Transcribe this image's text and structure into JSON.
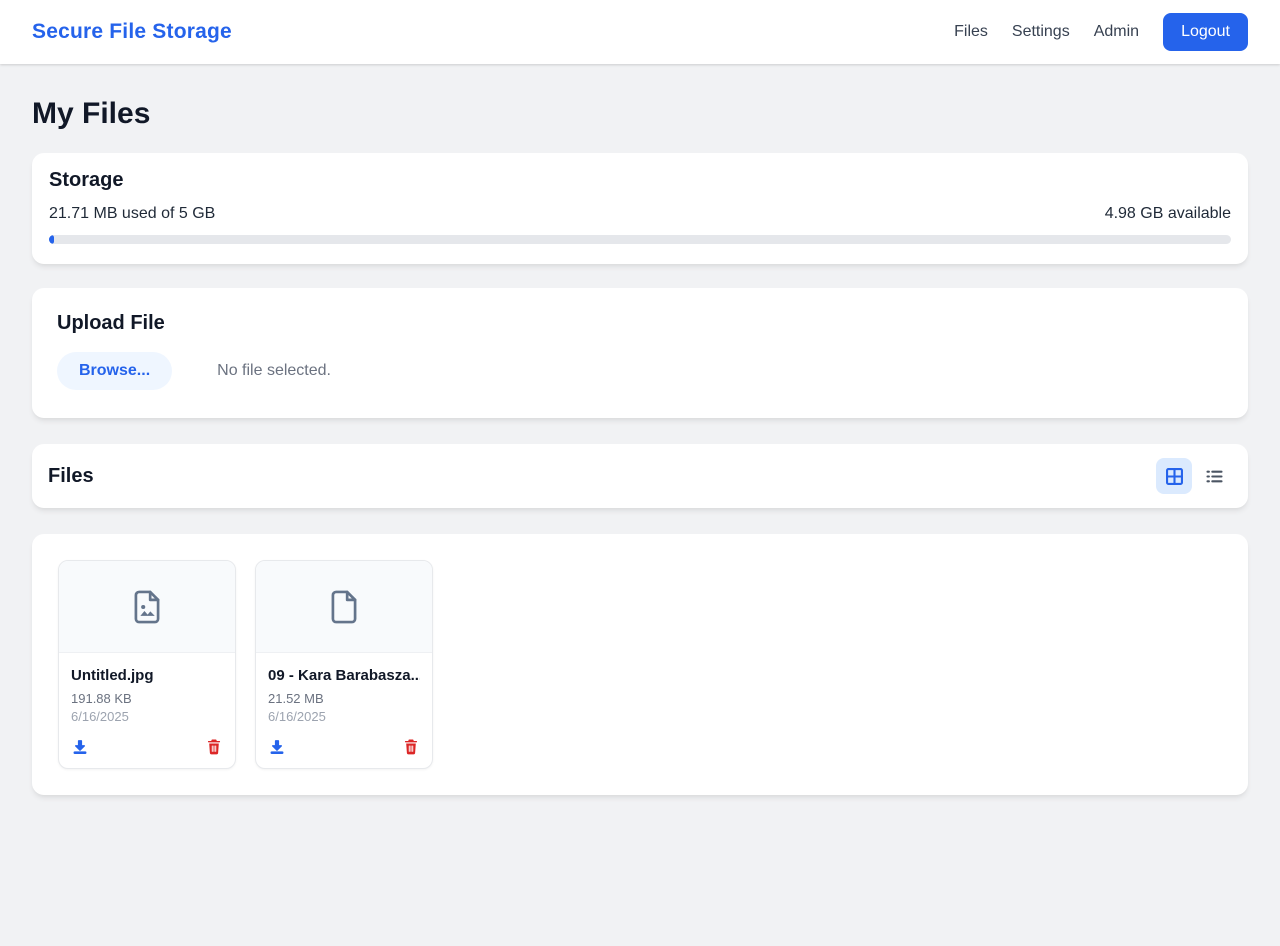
{
  "header": {
    "brand": "Secure File Storage",
    "nav": [
      {
        "label": "Files"
      },
      {
        "label": "Settings"
      },
      {
        "label": "Admin"
      }
    ],
    "logout_label": "Logout"
  },
  "page": {
    "title": "My Files"
  },
  "storage": {
    "title": "Storage",
    "used_text": "21.71 MB used of 5 GB",
    "available_text": "4.98 GB available",
    "progress_percent": 0.42
  },
  "upload": {
    "title": "Upload File",
    "browse_label": "Browse...",
    "status_text": "No file selected."
  },
  "files_section": {
    "title": "Files",
    "active_view": "grid",
    "view_modes": [
      "grid",
      "list"
    ]
  },
  "files": [
    {
      "name": "Untitled.jpg",
      "size": "191.88 KB",
      "date": "6/16/2025",
      "type": "image"
    },
    {
      "name": "09 - Kara Barabasza....",
      "size": "21.52 MB",
      "date": "6/16/2025",
      "type": "file"
    }
  ],
  "colors": {
    "accent": "#2563eb",
    "accent_light": "#dbeafe",
    "danger": "#dc2626",
    "thumb_icon": "#64748b"
  }
}
